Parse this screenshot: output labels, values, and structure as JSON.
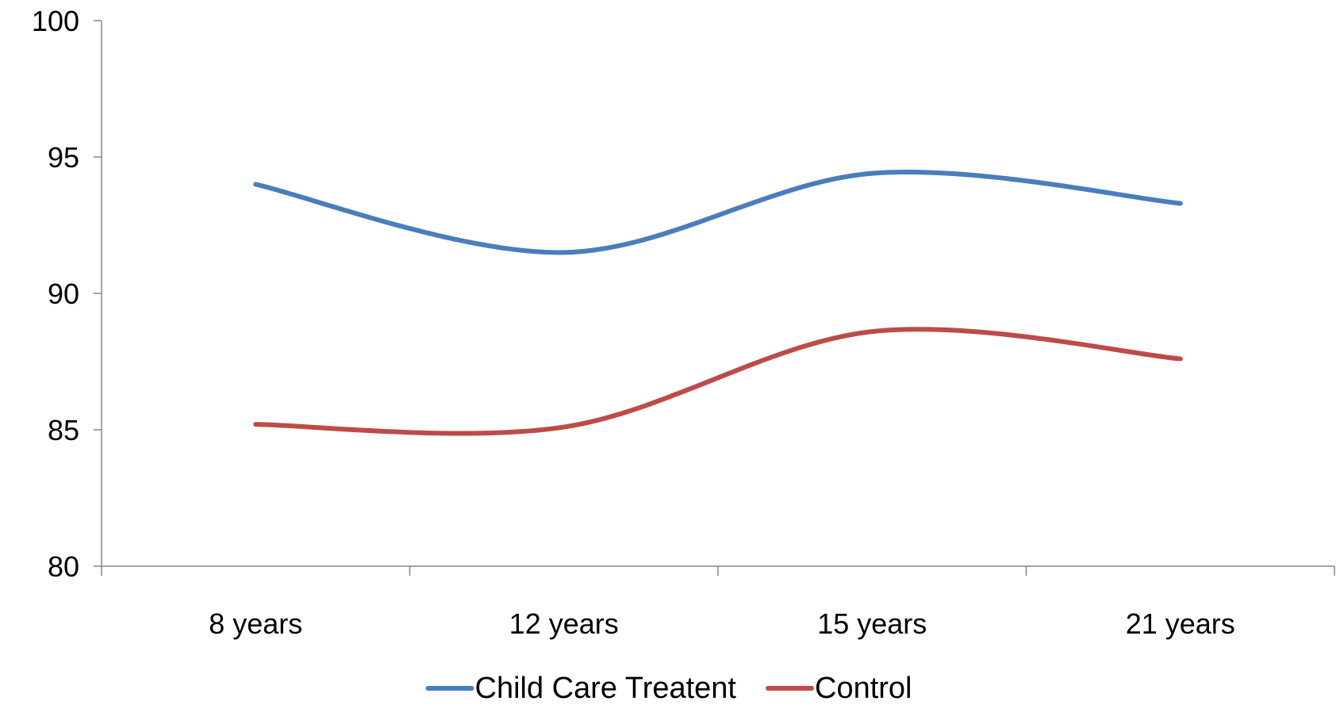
{
  "chart_data": {
    "type": "line",
    "title": "",
    "xlabel": "",
    "ylabel": "",
    "categories": [
      "8 years",
      "12 years",
      "15 years",
      "21 years"
    ],
    "ylim": [
      80,
      100
    ],
    "yticks": [
      80,
      85,
      90,
      95,
      100
    ],
    "grid": false,
    "smooth": true,
    "legend_position": "bottom",
    "series": [
      {
        "name": "Child Care Treatent",
        "values": [
          94.0,
          91.5,
          94.4,
          93.3
        ],
        "color": "#4a7ebb"
      },
      {
        "name": "Control",
        "values": [
          85.2,
          85.1,
          88.6,
          87.6
        ],
        "color": "#be4b48"
      }
    ]
  }
}
